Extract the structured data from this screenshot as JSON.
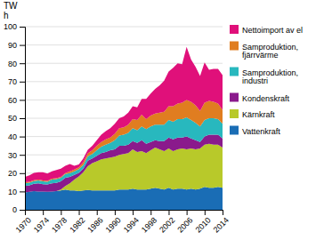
{
  "chart_data": {
    "type": "area",
    "stacked": true,
    "y_label": "TW\nh",
    "x": [
      1970,
      1971,
      1972,
      1973,
      1974,
      1975,
      1976,
      1977,
      1978,
      1979,
      1980,
      1981,
      1982,
      1983,
      1984,
      1985,
      1986,
      1987,
      1988,
      1989,
      1990,
      1991,
      1992,
      1993,
      1994,
      1995,
      1996,
      1997,
      1998,
      1999,
      2000,
      2001,
      2002,
      2003,
      2004,
      2005,
      2006,
      2007,
      2008,
      2009,
      2010,
      2011,
      2012,
      2013,
      2014
    ],
    "series": [
      {
        "name": "Vattenkraft",
        "color": "#1a6db5",
        "values": [
          9.5,
          9.8,
          10.2,
          10.0,
          10.0,
          9.8,
          10.0,
          10.2,
          10.5,
          11.0,
          10.5,
          10.5,
          10.2,
          10.5,
          10.8,
          10.5,
          10.5,
          10.5,
          10.5,
          10.5,
          10.5,
          11.0,
          11.0,
          11.0,
          11.5,
          11.0,
          11.0,
          11.0,
          11.5,
          12.0,
          11.5,
          11.0,
          12.0,
          11.0,
          11.5,
          11.5,
          11.0,
          11.5,
          11.0,
          11.5,
          12.5,
          12.0,
          12.0,
          12.5,
          12.0
        ]
      },
      {
        "name": "Kärnkraft",
        "color": "#b8c92a",
        "values": [
          0.0,
          0.0,
          0.0,
          0.0,
          0.0,
          0.0,
          0.0,
          0.0,
          0.5,
          2.0,
          4.0,
          6.0,
          8.0,
          10.0,
          13.0,
          15.0,
          16.0,
          17.0,
          17.5,
          18.0,
          18.5,
          19.0,
          19.5,
          20.0,
          21.5,
          20.5,
          21.0,
          20.0,
          21.0,
          22.0,
          21.5,
          21.0,
          21.5,
          21.0,
          21.5,
          22.0,
          22.0,
          22.0,
          22.0,
          22.0,
          23.0,
          24.0,
          23.5,
          23.0,
          22.0
        ]
      },
      {
        "name": "Kondenskraft",
        "color": "#8a1a8c",
        "values": [
          3.5,
          3.5,
          4.0,
          4.5,
          4.0,
          4.0,
          4.5,
          4.5,
          4.5,
          4.5,
          3.5,
          2.5,
          2.0,
          2.0,
          3.0,
          2.5,
          3.0,
          3.5,
          3.5,
          4.0,
          4.0,
          5.0,
          4.5,
          4.5,
          4.5,
          5.0,
          6.0,
          5.0,
          4.5,
          4.0,
          4.5,
          5.5,
          6.0,
          6.5,
          6.5,
          6.0,
          7.0,
          5.5,
          5.0,
          3.5,
          4.5,
          5.0,
          5.5,
          5.5,
          5.0
        ]
      },
      {
        "name": "Samproduktion,\nindustri",
        "color": "#28b8be",
        "values": [
          1.5,
          1.5,
          1.5,
          1.5,
          1.5,
          1.5,
          2.0,
          2.0,
          2.0,
          2.0,
          2.0,
          2.0,
          2.0,
          2.0,
          2.5,
          2.5,
          3.0,
          3.5,
          4.0,
          4.0,
          5.0,
          5.5,
          6.0,
          6.5,
          7.0,
          7.0,
          7.5,
          8.0,
          8.5,
          8.5,
          9.0,
          9.0,
          9.5,
          9.5,
          10.0,
          10.0,
          10.5,
          10.0,
          9.5,
          8.5,
          9.0,
          9.0,
          9.0,
          8.5,
          8.0
        ]
      },
      {
        "name": "Samproduktion,\nfjärrvärme",
        "color": "#e07d20",
        "values": [
          0.5,
          0.5,
          0.5,
          0.5,
          0.5,
          0.5,
          0.5,
          0.5,
          0.5,
          0.5,
          1.0,
          1.0,
          1.0,
          1.5,
          1.5,
          2.0,
          2.5,
          2.5,
          3.0,
          3.0,
          3.5,
          4.0,
          4.0,
          4.5,
          5.0,
          5.5,
          6.5,
          5.5,
          6.0,
          6.0,
          6.5,
          7.0,
          7.5,
          8.5,
          8.5,
          9.0,
          9.5,
          10.0,
          9.5,
          8.5,
          9.5,
          9.5,
          9.0,
          8.5,
          7.5
        ]
      },
      {
        "name": "Nettoimport av el",
        "color": "#e0107a",
        "values": [
          3.0,
          3.5,
          4.0,
          4.0,
          4.5,
          4.0,
          4.0,
          4.5,
          4.5,
          4.0,
          4.0,
          2.0,
          1.5,
          2.0,
          2.0,
          2.5,
          3.0,
          4.0,
          4.5,
          5.0,
          5.5,
          5.5,
          6.0,
          6.5,
          7.0,
          7.0,
          8.5,
          11.0,
          12.0,
          13.5,
          15.0,
          17.0,
          19.0,
          21.0,
          22.0,
          21.0,
          29.0,
          23.0,
          21.0,
          19.0,
          22.0,
          17.0,
          18.0,
          19.0,
          19.0
        ]
      }
    ],
    "xlim": [
      1970,
      2014
    ],
    "xticks": [
      1970,
      1974,
      1978,
      1982,
      1986,
      1990,
      1994,
      1998,
      2002,
      2006,
      2010,
      2014
    ],
    "ylim": [
      0,
      100
    ],
    "yticks": [
      0,
      10,
      20,
      30,
      40,
      50,
      60,
      70,
      80,
      90,
      100
    ],
    "grid": true,
    "legend": "right"
  }
}
